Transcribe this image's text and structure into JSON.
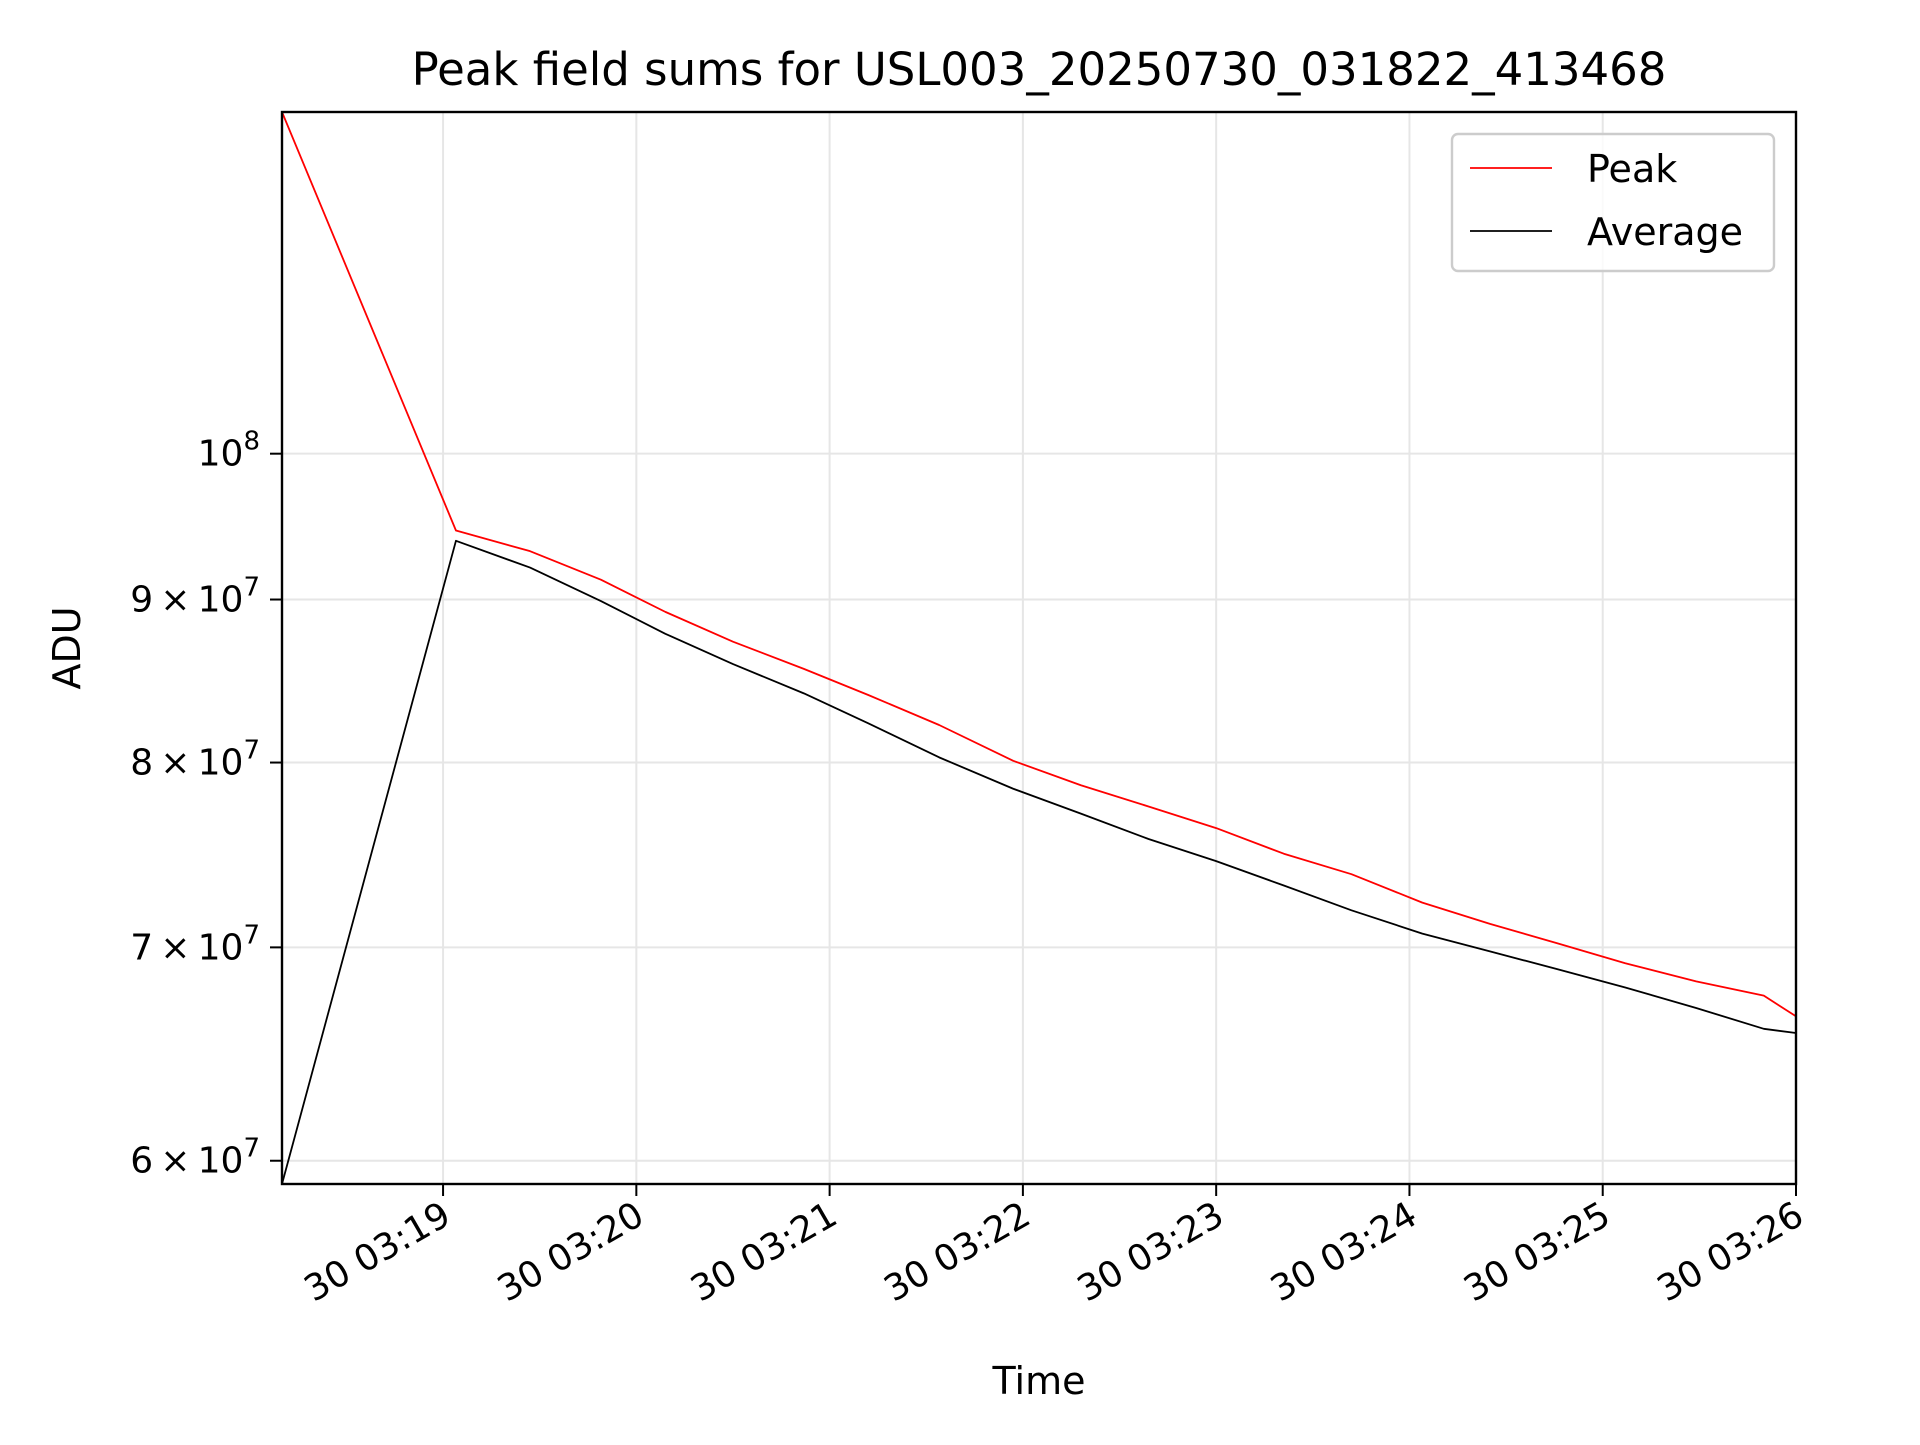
{
  "chart_data": {
    "type": "line",
    "title": "Peak field sums for USL003_20250730_031822_413468",
    "xlabel": "Time",
    "ylabel": "ADU",
    "x_scale": "time",
    "y_scale": "log",
    "grid": true,
    "legend_position": "top-right",
    "x_range": [
      "2025-07-30 03:18:10",
      "2025-07-30 03:26:00"
    ],
    "y_range": [
      59000000,
      128000000
    ],
    "x_ticks": [
      {
        "value": "2025-07-30 03:19:00",
        "label": "30 03:19"
      },
      {
        "value": "2025-07-30 03:20:00",
        "label": "30 03:20"
      },
      {
        "value": "2025-07-30 03:21:00",
        "label": "30 03:21"
      },
      {
        "value": "2025-07-30 03:22:00",
        "label": "30 03:22"
      },
      {
        "value": "2025-07-30 03:23:00",
        "label": "30 03:23"
      },
      {
        "value": "2025-07-30 03:24:00",
        "label": "30 03:24"
      },
      {
        "value": "2025-07-30 03:25:00",
        "label": "30 03:25"
      },
      {
        "value": "2025-07-30 03:26:00",
        "label": "30 03:26"
      }
    ],
    "y_ticks": [
      {
        "value": 60000000,
        "mantissa": "6",
        "base": "10",
        "exp": "7"
      },
      {
        "value": 70000000,
        "mantissa": "7",
        "base": "10",
        "exp": "7"
      },
      {
        "value": 80000000,
        "mantissa": "8",
        "base": "10",
        "exp": "7"
      },
      {
        "value": 90000000,
        "mantissa": "9",
        "base": "10",
        "exp": "7"
      },
      {
        "value": 100000000,
        "mantissa": "",
        "base": "10",
        "exp": "8"
      }
    ],
    "x": [
      "2025-07-30 03:18:10",
      "2025-07-30 03:19:04",
      "2025-07-30 03:19:27",
      "2025-07-30 03:19:49",
      "2025-07-30 03:20:09",
      "2025-07-30 03:20:30",
      "2025-07-30 03:20:52",
      "2025-07-30 03:21:12",
      "2025-07-30 03:21:34",
      "2025-07-30 03:21:57",
      "2025-07-30 03:22:18",
      "2025-07-30 03:22:39",
      "2025-07-30 03:23:00",
      "2025-07-30 03:23:21",
      "2025-07-30 03:23:42",
      "2025-07-30 03:24:04",
      "2025-07-30 03:24:25",
      "2025-07-30 03:24:46",
      "2025-07-30 03:25:07",
      "2025-07-30 03:25:29",
      "2025-07-30 03:25:50",
      "2025-07-30 03:26:00"
    ],
    "series": [
      {
        "name": "Peak",
        "color": "#ff0000",
        "values": [
          128000000,
          94600000,
          93200000,
          91300000,
          89200000,
          87300000,
          85600000,
          84000000,
          82200000,
          80100000,
          78700000,
          77500000,
          76300000,
          74900000,
          73800000,
          72300000,
          71200000,
          70200000,
          69200000,
          68300000,
          67600000,
          66600000
        ]
      },
      {
        "name": "Average",
        "color": "#000000",
        "values": [
          59000000,
          93900000,
          92100000,
          89900000,
          87800000,
          85900000,
          84100000,
          82300000,
          80300000,
          78500000,
          77100000,
          75700000,
          74500000,
          73200000,
          71900000,
          70700000,
          69800000,
          68900000,
          68000000,
          67000000,
          66000000,
          65800000
        ]
      }
    ]
  }
}
